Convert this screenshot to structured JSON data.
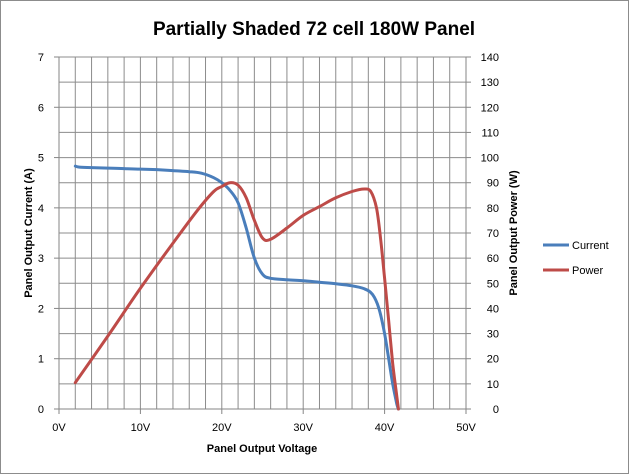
{
  "chart_data": {
    "type": "line",
    "title": "Partially Shaded 72 cell 180W Panel",
    "xlabel": "Panel Output Voltage",
    "ylabel_left": "Panel Output Current (A)",
    "ylabel_right": "Panel Output Power (W)",
    "xlim": [
      0,
      50
    ],
    "ylim_left": [
      0,
      7
    ],
    "ylim_right": [
      0,
      140
    ],
    "x_ticks": [
      "0V",
      "10V",
      "20V",
      "30V",
      "40V",
      "50V"
    ],
    "y_left_ticks": [
      "0",
      "1",
      "2",
      "3",
      "4",
      "5",
      "6",
      "7"
    ],
    "y_right_ticks": [
      "0",
      "10",
      "20",
      "30",
      "40",
      "50",
      "60",
      "70",
      "80",
      "90",
      "100",
      "110",
      "120",
      "130",
      "140"
    ],
    "grid": true,
    "legend": "right",
    "series": [
      {
        "name": "Current",
        "axis": "left",
        "color": "#4a7ebb",
        "points": [
          [
            2.0,
            4.83
          ],
          [
            2.5,
            4.81
          ],
          [
            4,
            4.8
          ],
          [
            6,
            4.79
          ],
          [
            8,
            4.78
          ],
          [
            10,
            4.77
          ],
          [
            12,
            4.76
          ],
          [
            14,
            4.74
          ],
          [
            16,
            4.72
          ],
          [
            17.5,
            4.69
          ],
          [
            19,
            4.6
          ],
          [
            20,
            4.5
          ],
          [
            21,
            4.35
          ],
          [
            22,
            4.1
          ],
          [
            23,
            3.6
          ],
          [
            24,
            3.0
          ],
          [
            25,
            2.68
          ],
          [
            26,
            2.6
          ],
          [
            28,
            2.57
          ],
          [
            30,
            2.55
          ],
          [
            32,
            2.52
          ],
          [
            34,
            2.49
          ],
          [
            36,
            2.45
          ],
          [
            37.5,
            2.39
          ],
          [
            38.5,
            2.28
          ],
          [
            39.3,
            2.0
          ],
          [
            40,
            1.5
          ],
          [
            40.5,
            1.0
          ],
          [
            41,
            0.5
          ],
          [
            41.5,
            0.1
          ],
          [
            41.7,
            0.0
          ]
        ]
      },
      {
        "name": "Power",
        "axis": "right",
        "color": "#be4b48",
        "points": [
          [
            2.0,
            10.5
          ],
          [
            6,
            29
          ],
          [
            10,
            48
          ],
          [
            14,
            66
          ],
          [
            17,
            79
          ],
          [
            19,
            86.5
          ],
          [
            20,
            88.5
          ],
          [
            21,
            90
          ],
          [
            22,
            89
          ],
          [
            23,
            84
          ],
          [
            24,
            75
          ],
          [
            25,
            68
          ],
          [
            26,
            67.5
          ],
          [
            28,
            72
          ],
          [
            30,
            77
          ],
          [
            32,
            80.5
          ],
          [
            34,
            84
          ],
          [
            36,
            86.5
          ],
          [
            37.5,
            87.5
          ],
          [
            38.3,
            86.5
          ],
          [
            39,
            80
          ],
          [
            39.5,
            68
          ],
          [
            40,
            52
          ],
          [
            40.5,
            35
          ],
          [
            41,
            18
          ],
          [
            41.5,
            5
          ],
          [
            41.7,
            0
          ]
        ]
      }
    ]
  }
}
